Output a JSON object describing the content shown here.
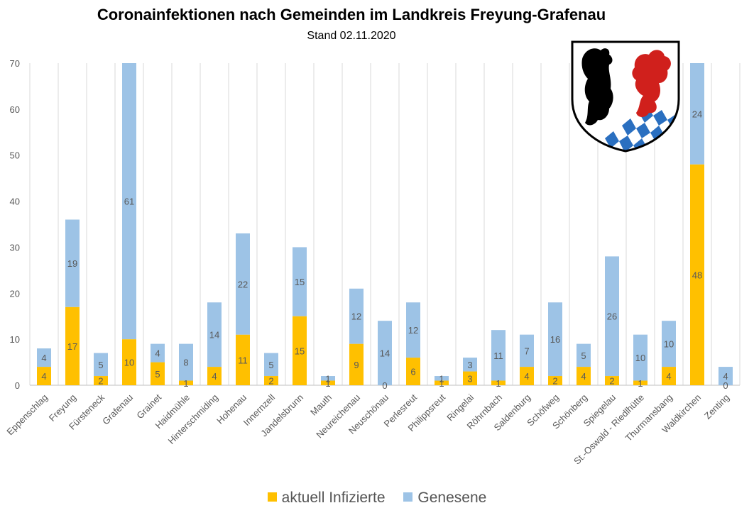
{
  "chart_data": {
    "type": "bar",
    "stacked": true,
    "title": "Coronainfektionen nach Gemeinden im Landkreis Freyung-Grafenau",
    "subtitle": "Stand 02.11.2020",
    "xlabel": "",
    "ylabel": "",
    "ylim": [
      0,
      70
    ],
    "yticks": [
      0,
      10,
      20,
      30,
      40,
      50,
      60,
      70
    ],
    "grid": "vertical",
    "legend_position": "bottom",
    "categories": [
      "Eppenschlag",
      "Freyung",
      "Fürsteneck",
      "Grafenau",
      "Grainet",
      "Haidmühle",
      "Hinterschmiding",
      "Hohenau",
      "Innernzell",
      "Jandelsbrunn",
      "Mauth",
      "Neureichenau",
      "Neuschönau",
      "Perlesreut",
      "Philippsreut",
      "Ringelai",
      "Röhrnbach",
      "Saldenburg",
      "Schöfweg",
      "Schönberg",
      "Spiegelau",
      "St.-Oswald - Riedlhütte",
      "Thurmansbang",
      "Waldkirchen",
      "Zenting"
    ],
    "series": [
      {
        "name": "aktuell Infizierte",
        "color": "#FFC000",
        "values": [
          4,
          17,
          2,
          10,
          5,
          1,
          4,
          11,
          2,
          15,
          1,
          9,
          0,
          6,
          1,
          3,
          1,
          4,
          2,
          4,
          2,
          1,
          4,
          48,
          0
        ]
      },
      {
        "name": "Genesene",
        "color": "#9DC3E6",
        "values": [
          4,
          19,
          5,
          61,
          4,
          8,
          14,
          22,
          5,
          15,
          1,
          12,
          14,
          12,
          1,
          3,
          11,
          7,
          16,
          5,
          26,
          10,
          10,
          24,
          4
        ]
      }
    ]
  }
}
